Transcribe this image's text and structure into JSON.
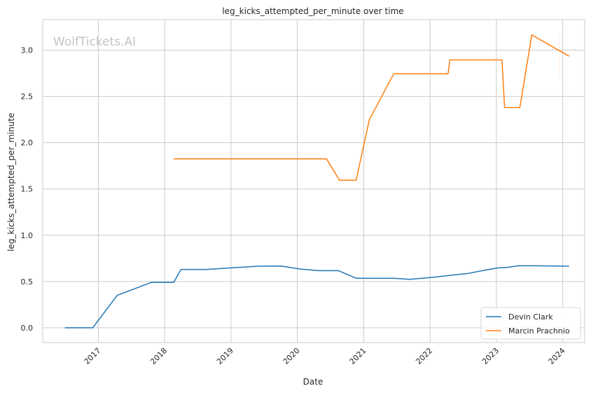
{
  "chart_data": {
    "type": "line",
    "title": "leg_kicks_attempted_per_minute over time",
    "xlabel": "Date",
    "ylabel": "leg_kicks_attempted_per_minute",
    "watermark": "WolfTickets.AI",
    "xlim": [
      "2016-03-01",
      "2024-05-01"
    ],
    "ylim": [
      -0.16,
      3.33
    ],
    "x_ticks": [
      "2017-01-01",
      "2018-01-01",
      "2019-01-01",
      "2020-01-01",
      "2021-01-01",
      "2022-01-01",
      "2023-01-01",
      "2024-01-01"
    ],
    "x_tick_labels": [
      "2017",
      "2018",
      "2019",
      "2020",
      "2021",
      "2022",
      "2023",
      "2024"
    ],
    "y_ticks": [
      0.0,
      0.5,
      1.0,
      1.5,
      2.0,
      2.5,
      3.0
    ],
    "y_tick_labels": [
      "0.0",
      "0.5",
      "1.0",
      "1.5",
      "2.0",
      "2.5",
      "3.0"
    ],
    "grid": true,
    "legend_position": "bottom-right",
    "colors": {
      "Devin Clark": "#1f77b4",
      "Marcin Prachnio": "#ff7f0e"
    },
    "series": [
      {
        "name": "Devin Clark",
        "points": [
          [
            "2016-07-01",
            0.0
          ],
          [
            "2016-12-01",
            0.0
          ],
          [
            "2017-04-15",
            0.35
          ],
          [
            "2017-10-20",
            0.49
          ],
          [
            "2018-02-20",
            0.49
          ],
          [
            "2018-04-01",
            0.63
          ],
          [
            "2018-08-20",
            0.63
          ],
          [
            "2018-12-10",
            0.645
          ],
          [
            "2019-06-01",
            0.665
          ],
          [
            "2019-10-05",
            0.667
          ],
          [
            "2020-01-15",
            0.635
          ],
          [
            "2020-05-01",
            0.617
          ],
          [
            "2020-08-15",
            0.617
          ],
          [
            "2020-11-20",
            0.535
          ],
          [
            "2021-06-15",
            0.535
          ],
          [
            "2021-09-10",
            0.523
          ],
          [
            "2022-01-15",
            0.545
          ],
          [
            "2022-05-01",
            0.568
          ],
          [
            "2022-08-01",
            0.588
          ],
          [
            "2022-11-15",
            0.628
          ],
          [
            "2023-01-15",
            0.648
          ],
          [
            "2023-03-01",
            0.652
          ],
          [
            "2023-05-01",
            0.67
          ],
          [
            "2023-08-01",
            0.67
          ],
          [
            "2024-02-05",
            0.665
          ]
        ]
      },
      {
        "name": "Marcin Prachnio",
        "points": [
          [
            "2018-02-20",
            1.825
          ],
          [
            "2020-06-10",
            1.825
          ],
          [
            "2020-08-20",
            1.595
          ],
          [
            "2020-11-20",
            1.595
          ],
          [
            "2021-02-01",
            2.25
          ],
          [
            "2021-06-15",
            2.745
          ],
          [
            "2022-04-10",
            2.745
          ],
          [
            "2022-04-20",
            2.895
          ],
          [
            "2023-02-01",
            2.895
          ],
          [
            "2023-02-15",
            2.38
          ],
          [
            "2023-05-10",
            2.38
          ],
          [
            "2023-07-15",
            3.165
          ],
          [
            "2024-02-05",
            2.935
          ]
        ]
      }
    ]
  }
}
